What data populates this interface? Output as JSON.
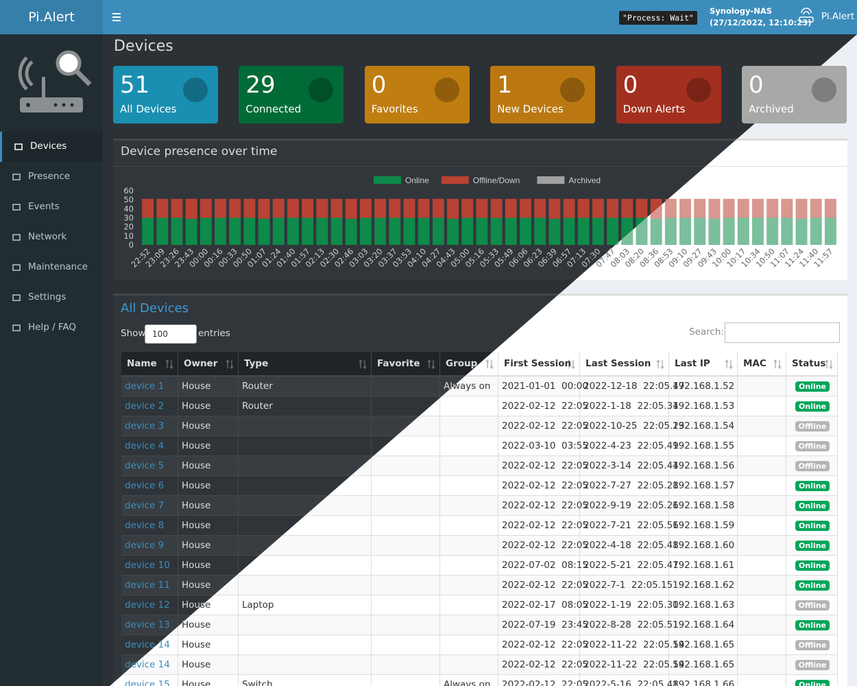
{
  "header": {
    "brand": "Pi.Alert",
    "status": "\"Process: Wait\"",
    "host": "Synology-NAS",
    "timestamp": "(27/12/2022, 12:10:23)",
    "user": "Pi.Alert"
  },
  "sidebar": {
    "items": [
      "Devices",
      "Presence",
      "Events",
      "Network",
      "Maintenance",
      "Settings",
      "Help / FAQ"
    ],
    "active": 0
  },
  "page_title": "Devices",
  "cards": [
    {
      "value": 51,
      "label": "All Devices",
      "color": "#1a8fb1"
    },
    {
      "value": 29,
      "label": "Connected",
      "color": "#016b37"
    },
    {
      "value": 0,
      "label": "Favorites",
      "color": "#c07d10"
    },
    {
      "value": 1,
      "label": "New Devices",
      "color": "#bb7812"
    },
    {
      "value": 0,
      "label": "Down Alerts",
      "color": "#a3301f"
    },
    {
      "value": 0,
      "label": "Archived",
      "color": "#a8a8a8"
    }
  ],
  "chart_data": {
    "type": "bar",
    "stacked": true,
    "title": "Device presence over time",
    "legend": "top",
    "categories": [
      "22:52",
      "23:09",
      "23:26",
      "23:43",
      "00:00",
      "00:16",
      "00:33",
      "00:50",
      "01:07",
      "01:24",
      "01:40",
      "01:57",
      "02:13",
      "02:30",
      "02:46",
      "03:03",
      "03:20",
      "03:37",
      "03:53",
      "04:10",
      "04:27",
      "04:43",
      "05:00",
      "05:16",
      "05:33",
      "05:49",
      "06:06",
      "06:23",
      "06:39",
      "06:57",
      "07:13",
      "07:30",
      "07:47",
      "08:03",
      "08:20",
      "08:36",
      "08:53",
      "09:10",
      "09:27",
      "09:43",
      "10:00",
      "10:17",
      "10:34",
      "10:50",
      "11:07",
      "11:24",
      "11:40",
      "11:57"
    ],
    "series": [
      {
        "name": "Online",
        "color": "#0e8a4a",
        "values": [
          30,
          30,
          30,
          29,
          30,
          30,
          30,
          30,
          29,
          30,
          30,
          30,
          30,
          30,
          29,
          30,
          30,
          30,
          30,
          30,
          30,
          29,
          30,
          30,
          30,
          30,
          30,
          30,
          29,
          30,
          30,
          30,
          30,
          30,
          30,
          29,
          30,
          30,
          30,
          29,
          30,
          30,
          30,
          30,
          30,
          29,
          30,
          30
        ]
      },
      {
        "name": "Offline/Down",
        "color": "#b84233",
        "values": [
          21,
          21,
          21,
          22,
          21,
          21,
          21,
          21,
          22,
          21,
          21,
          21,
          21,
          21,
          22,
          21,
          21,
          21,
          21,
          21,
          21,
          22,
          21,
          21,
          21,
          21,
          21,
          21,
          22,
          21,
          21,
          21,
          21,
          21,
          21,
          22,
          21,
          21,
          21,
          22,
          21,
          21,
          21,
          21,
          21,
          22,
          21,
          21
        ]
      },
      {
        "name": "Archived",
        "color": "#a0a0a0",
        "values": [
          0,
          0,
          0,
          0,
          0,
          0,
          0,
          0,
          0,
          0,
          0,
          0,
          0,
          0,
          0,
          0,
          0,
          0,
          0,
          0,
          0,
          0,
          0,
          0,
          0,
          0,
          0,
          0,
          0,
          0,
          0,
          0,
          0,
          0,
          0,
          0,
          0,
          0,
          0,
          0,
          0,
          0,
          0,
          0,
          0,
          0,
          0,
          0
        ]
      }
    ],
    "ylim": [
      0,
      60
    ],
    "yticks": [
      0,
      10,
      20,
      30,
      40,
      50,
      60
    ]
  },
  "table": {
    "title": "All Devices",
    "show_label": "Show",
    "page_size": "100",
    "entries_label": "entries",
    "search_label": "Search:",
    "columns": [
      "Name",
      "Owner",
      "Type",
      "Favorite",
      "Group",
      "First Session",
      "Last Session",
      "Last IP",
      "MAC",
      "Status"
    ],
    "rows": [
      [
        "device 1",
        "House",
        "Router",
        null,
        "Always on",
        "2021-01-01  00:00",
        "2022-12-18  22:05.47",
        "192.168.1.52",
        null,
        {
          "label": "Online",
          "color": "#00a65a"
        }
      ],
      [
        "device 2",
        "House",
        "Router",
        null,
        null,
        "2022-02-12  22:05",
        "2022-1-18  22:05.34",
        "192.168.1.53",
        null,
        {
          "label": "Online",
          "color": "#00a65a"
        }
      ],
      [
        "device 3",
        "House",
        null,
        null,
        null,
        "2022-02-12  22:05",
        "2022-10-25  22:05.23",
        "192.168.1.54",
        null,
        {
          "label": "Offline",
          "color": "#b5b5b5"
        }
      ],
      [
        "device 4",
        "House",
        null,
        null,
        null,
        "2022-03-10  03:55",
        "2022-4-23  22:05.49",
        "192.168.1.55",
        null,
        {
          "label": "Offline",
          "color": "#b5b5b5"
        }
      ],
      [
        "device 5",
        "House",
        null,
        null,
        null,
        "2022-02-12  22:05",
        "2022-3-14  22:05.44",
        "192.168.1.56",
        null,
        {
          "label": "Offline",
          "color": "#b5b5b5"
        }
      ],
      [
        "device 6",
        "House",
        null,
        null,
        null,
        "2022-02-12  22:05",
        "2022-7-27  22:05.28",
        "192.168.1.57",
        null,
        {
          "label": "Online",
          "color": "#00a65a"
        }
      ],
      [
        "device 7",
        "House",
        null,
        null,
        null,
        "2022-02-12  22:05",
        "2022-9-19  22:05.26",
        "192.168.1.58",
        null,
        {
          "label": "Online",
          "color": "#00a65a"
        }
      ],
      [
        "device 8",
        "House",
        null,
        null,
        null,
        "2022-02-12  22:05",
        "2022-7-21  22:05.56",
        "192.168.1.59",
        null,
        {
          "label": "Online",
          "color": "#00a65a"
        }
      ],
      [
        "device 9",
        "House",
        null,
        null,
        null,
        "2022-02-12  22:05",
        "2022-4-18  22:05.48",
        "192.168.1.60",
        null,
        {
          "label": "Online",
          "color": "#00a65a"
        }
      ],
      [
        "device 10",
        "House",
        null,
        null,
        null,
        "2022-07-02  08:15",
        "2022-5-21  22:05.47",
        "192.168.1.61",
        null,
        {
          "label": "Online",
          "color": "#00a65a"
        }
      ],
      [
        "device 11",
        "House",
        null,
        null,
        null,
        "2022-02-12  22:05",
        "2022-7-1  22:05.15",
        "192.168.1.62",
        null,
        {
          "label": "Online",
          "color": "#00a65a"
        }
      ],
      [
        "device 12",
        "House",
        "Laptop",
        null,
        null,
        "2022-02-17  08:05",
        "2022-1-19  22:05.30",
        "192.168.1.63",
        null,
        {
          "label": "Offline",
          "color": "#b5b5b5"
        }
      ],
      [
        "device 13",
        "House",
        null,
        null,
        null,
        "2022-07-19  23:45",
        "2022-8-28  22:05.51",
        "192.168.1.64",
        null,
        {
          "label": "Online",
          "color": "#00a65a"
        }
      ],
      [
        "device 14",
        "House",
        null,
        null,
        null,
        "2022-02-12  22:05",
        "2022-11-22  22:05.54",
        "192.168.1.65",
        null,
        {
          "label": "Offline",
          "color": "#b5b5b5"
        }
      ],
      [
        "device 14",
        "House",
        null,
        null,
        null,
        "2022-02-12  22:05",
        "2022-11-22  22:05.54",
        "192.168.1.65",
        null,
        {
          "label": "Offline",
          "color": "#b5b5b5"
        }
      ],
      [
        "device 15",
        "House",
        "Switch",
        null,
        "Always on",
        "2022-02-12  22:05",
        "2022-5-16  22:05.48",
        "192.168.1.66",
        null,
        {
          "label": "Online",
          "color": "#00a65a"
        }
      ]
    ]
  }
}
